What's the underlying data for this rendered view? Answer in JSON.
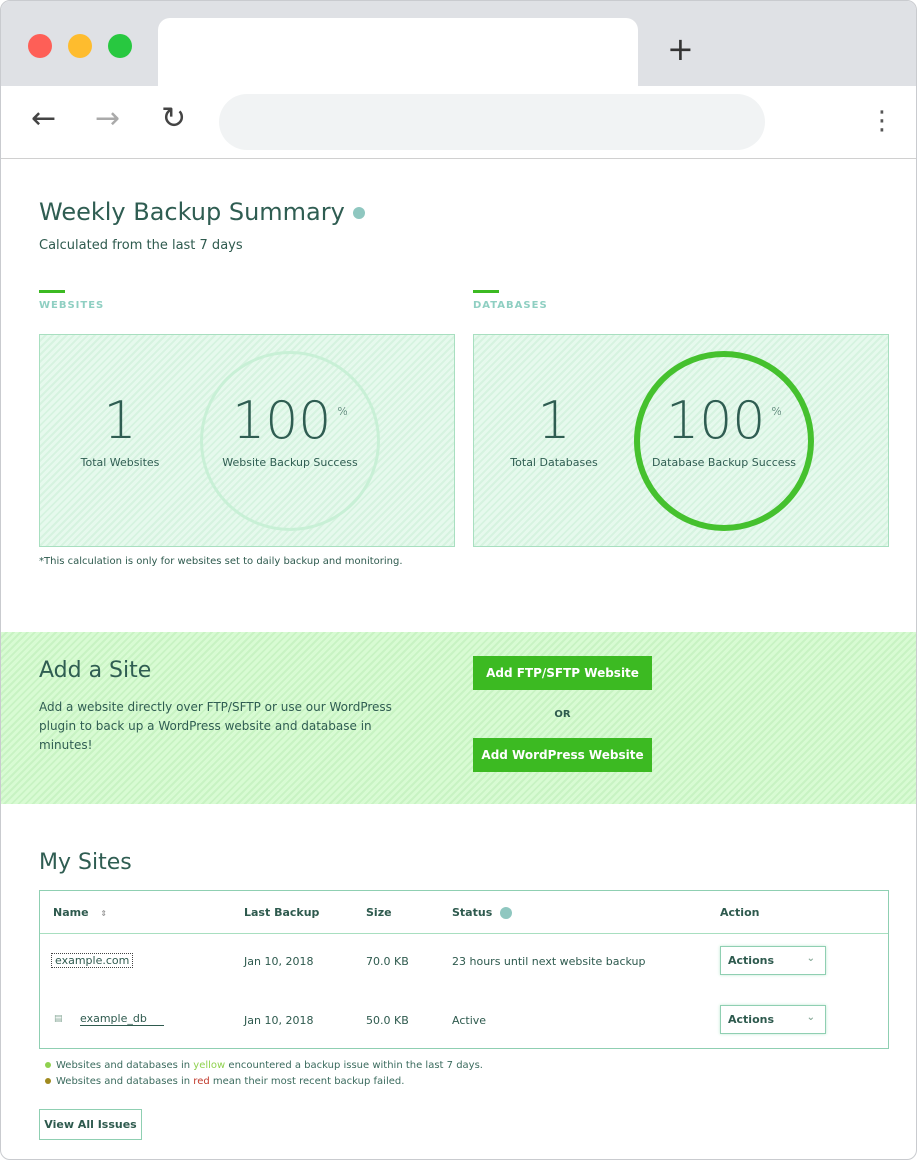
{
  "browser": {
    "back_icon": "arrow-left",
    "forward_icon": "arrow-right",
    "reload_icon": "reload",
    "menu_icon": "kebab",
    "new_tab_icon": "plus",
    "address": ""
  },
  "summary": {
    "title": "Weekly Backup Summary",
    "subtitle": "Calculated from the last 7 days",
    "websites": {
      "section": "WEBSITES",
      "total": "1",
      "total_label": "Total Websites",
      "success": "100",
      "success_unit": "%",
      "success_label": "Website Backup Success"
    },
    "databases": {
      "section": "DATABASES",
      "total": "1",
      "total_label": "Total Databases",
      "success": "100",
      "success_unit": "%",
      "success_label": "Database Backup Success"
    },
    "note": "*This calculation is only for websites set to daily backup and monitoring."
  },
  "add_site": {
    "title": "Add a Site",
    "description": "Add a website directly over FTP/SFTP or use our WordPress plugin to back up a WordPress website and database in minutes!",
    "ftp_button": "Add FTP/SFTP Website",
    "or": "OR",
    "wp_button": "Add WordPress Website"
  },
  "my_sites": {
    "title": "My Sites",
    "columns": {
      "name": "Name",
      "sort": "⇕",
      "last_backup": "Last Backup",
      "size": "Size",
      "status": "Status",
      "action": "Action"
    },
    "rows": [
      {
        "name": "example.com",
        "last_backup": "Jan 10, 2018",
        "size": "70.0 KB",
        "status": "23 hours until next website backup",
        "action": "Actions"
      },
      {
        "name": "example_db",
        "last_backup": "Jan 10, 2018",
        "size": "50.0 KB",
        "status": "Active",
        "action": "Actions"
      }
    ],
    "legend": [
      {
        "pre": "Websites and databases in ",
        "word": "yellow",
        "post": " encountered a backup issue within the last 7 days.",
        "color": "#8fd14f"
      },
      {
        "pre": "Websites and databases in ",
        "word": "red",
        "post": " mean their most recent backup failed.",
        "color": "#a08a1e"
      }
    ],
    "view_all": "View All Issues"
  },
  "colors": {
    "accent": "#3cba22",
    "text": "#2f5d52"
  }
}
